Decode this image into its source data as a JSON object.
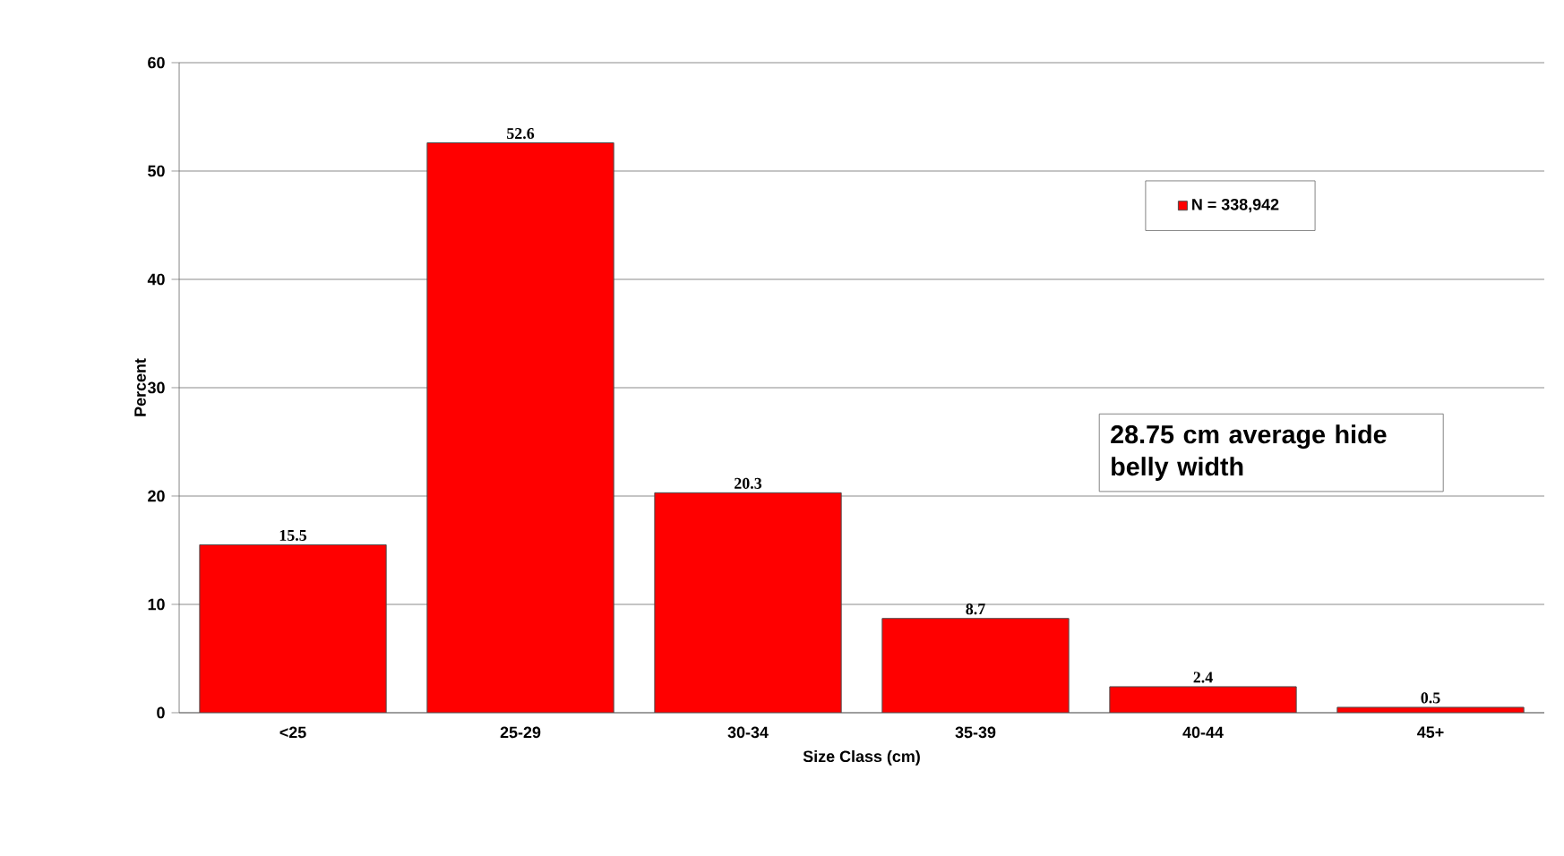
{
  "chart_data": {
    "type": "bar",
    "xlabel": "Size Class (cm)",
    "ylabel": "Percent",
    "categories": [
      "<25",
      "25-29",
      "30-34",
      "35-39",
      "40-44",
      "45+"
    ],
    "series": [
      {
        "name": "N = 338,942",
        "color": "#ff0000",
        "values": [
          15.5,
          52.6,
          20.3,
          8.7,
          2.4,
          0.5
        ]
      }
    ],
    "ylim": [
      0,
      60
    ],
    "yticks": [
      0,
      10,
      20,
      30,
      40,
      50,
      60
    ],
    "grid": "y",
    "legend": "top right",
    "data_labels": true,
    "annotations": [
      "28.75 cm average hide belly width"
    ]
  }
}
